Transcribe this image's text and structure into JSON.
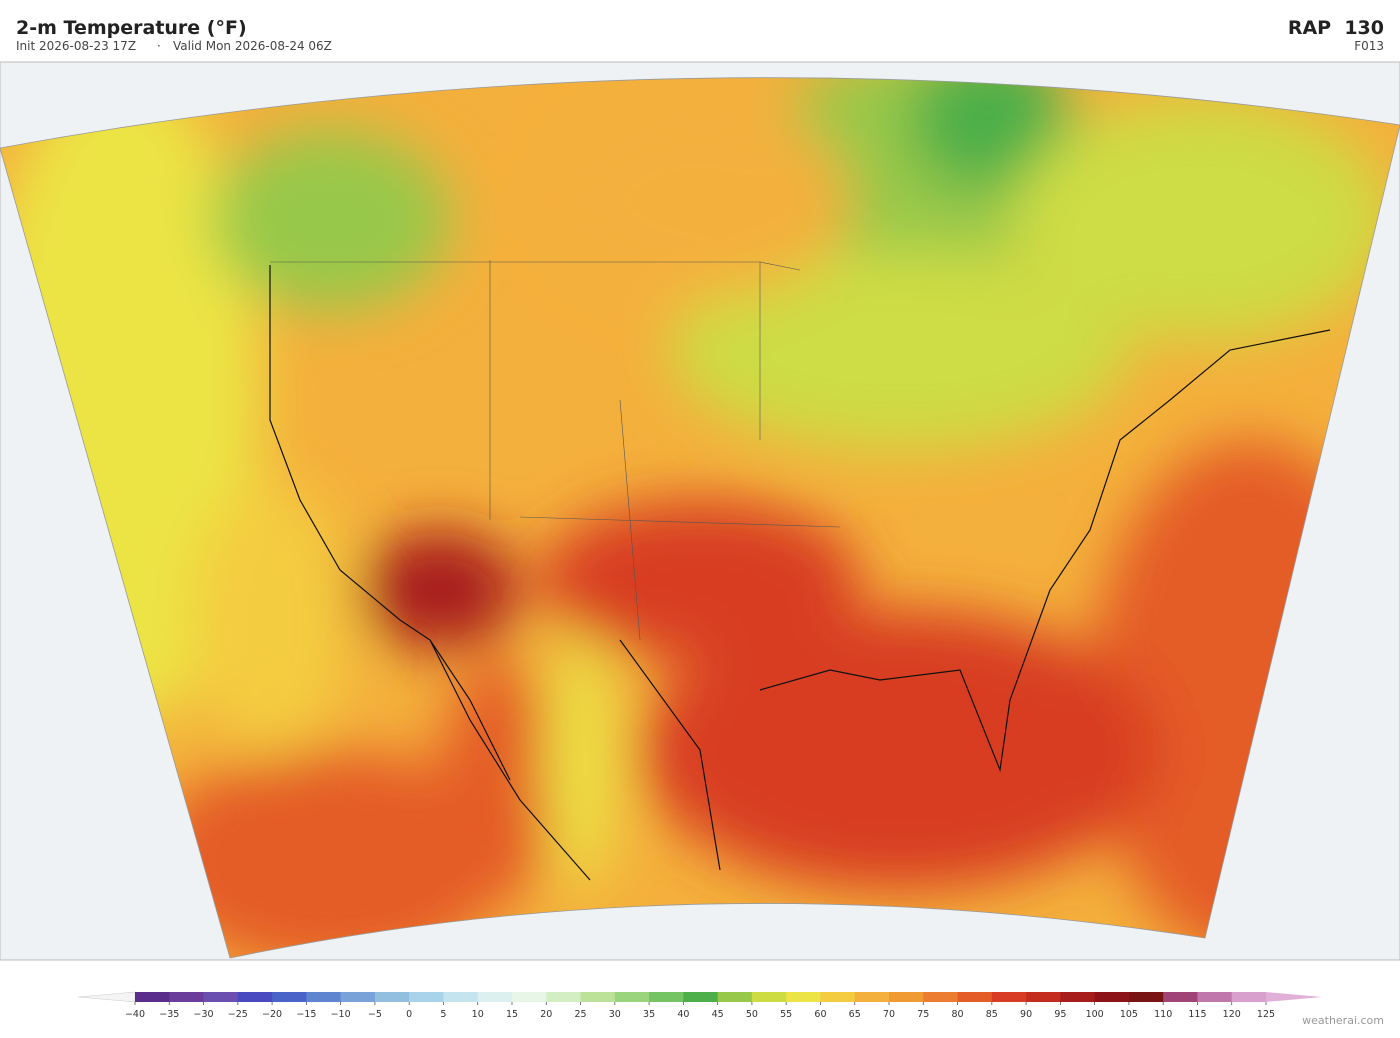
{
  "header": {
    "title": "2-m Temperature  (°F)",
    "init": "Init 2026-08-23 17Z",
    "separator": "·",
    "valid": "Valid Mon 2026-08-24 06Z",
    "model": "RAP  130",
    "forecast_hour": "F013"
  },
  "colorbar": {
    "ticks": [
      {
        "value": -40,
        "label": "−40"
      },
      {
        "value": -35,
        "label": "−35"
      },
      {
        "value": -30,
        "label": "−30"
      },
      {
        "value": -25,
        "label": "−25"
      },
      {
        "value": -20,
        "label": "−20"
      },
      {
        "value": -15,
        "label": "−15"
      },
      {
        "value": -10,
        "label": "−10"
      },
      {
        "value": -5,
        "label": "−5"
      },
      0,
      5,
      10,
      15,
      20,
      25,
      30,
      35,
      40,
      45,
      50,
      55,
      60,
      65,
      70,
      75,
      80,
      85,
      90,
      95,
      100,
      105,
      110,
      115,
      120,
      125
    ],
    "colors": [
      "#5a2d8c",
      "#6a3d9a",
      "#6a4fb0",
      "#4a4ac0",
      "#4a63c8",
      "#5f85d0",
      "#78a2d8",
      "#92bfe0",
      "#a8d3ea",
      "#c4e4f0",
      "#dcf0f0",
      "#e8f6e8",
      "#d4eec4",
      "#bce29a",
      "#9ad47c",
      "#74c464",
      "#4caf4a",
      "#98c84a",
      "#cedc44",
      "#ece444",
      "#f4cc40",
      "#f4b03c",
      "#f09a34",
      "#ec7c30",
      "#e45c28",
      "#d83c24",
      "#c42c20",
      "#a81c1c",
      "#8c1418",
      "#781414",
      "#a04478",
      "#c078ac",
      "#d8a0cc"
    ]
  },
  "footer": {
    "watermark": "weatherai.com"
  }
}
